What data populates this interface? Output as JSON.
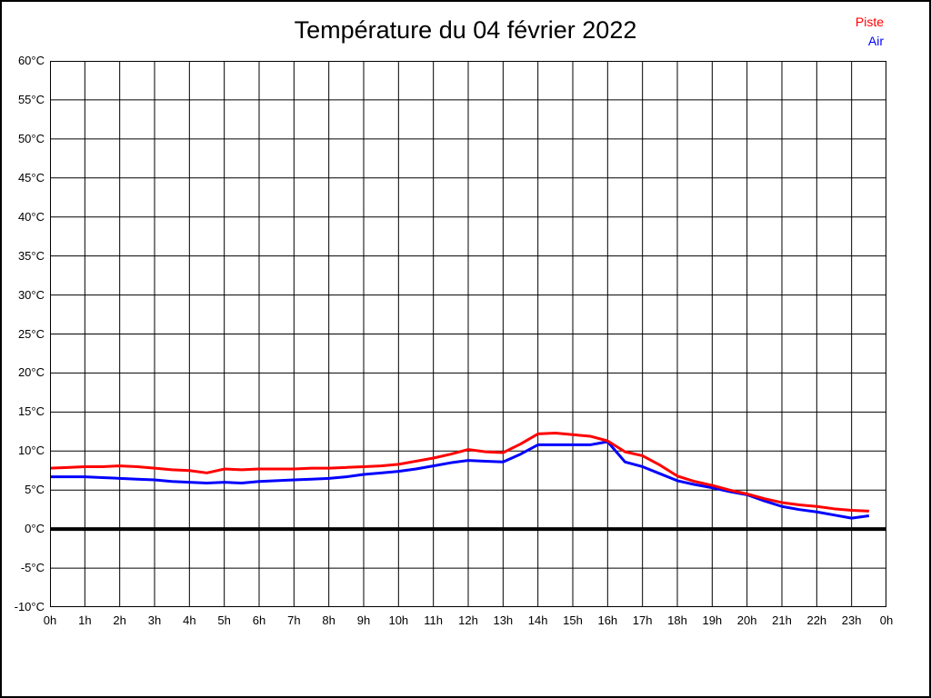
{
  "title": "Température du 04 février 2022",
  "legend": {
    "items": [
      {
        "label": "Piste",
        "color": "#ff0000"
      },
      {
        "label": "Air",
        "color": "#0000ff"
      }
    ]
  },
  "chart_data": {
    "type": "line",
    "title": "Température du 04 février 2022",
    "xlabel": "",
    "ylabel": "",
    "grid": true,
    "legend_position": "top-right",
    "background": "#ffffff",
    "grid_color": "#000000",
    "zero_line": {
      "value": 0,
      "color": "#000000",
      "width": 4
    },
    "x_axis": {
      "range": [
        0,
        24
      ],
      "tick_values": [
        0,
        1,
        2,
        3,
        4,
        5,
        6,
        7,
        8,
        9,
        10,
        11,
        12,
        13,
        14,
        15,
        16,
        17,
        18,
        19,
        20,
        21,
        22,
        23,
        24
      ],
      "tick_labels": [
        "0h",
        "1h",
        "2h",
        "3h",
        "4h",
        "5h",
        "6h",
        "7h",
        "8h",
        "9h",
        "10h",
        "11h",
        "12h",
        "13h",
        "14h",
        "15h",
        "16h",
        "17h",
        "18h",
        "19h",
        "20h",
        "21h",
        "22h",
        "23h",
        "0h"
      ]
    },
    "y_axis": {
      "range": [
        -10,
        60
      ],
      "unit": "°C",
      "tick_values": [
        60,
        55,
        50,
        45,
        40,
        35,
        30,
        25,
        20,
        15,
        10,
        5,
        0,
        -5,
        -10
      ],
      "tick_labels": [
        "60°C",
        "55°C",
        "50°C",
        "45°C",
        "40°C",
        "35°C",
        "30°C",
        "25°C",
        "20°C",
        "15°C",
        "10°C",
        "5°C",
        "0°C",
        "-5°C",
        "-10°C"
      ]
    },
    "x": [
      0,
      0.5,
      1,
      1.5,
      2,
      2.5,
      3,
      3.5,
      4,
      4.5,
      5,
      5.5,
      6,
      6.5,
      7,
      7.5,
      8,
      8.5,
      9,
      9.5,
      10,
      10.5,
      11,
      11.5,
      12,
      12.5,
      13,
      13.5,
      14,
      14.5,
      15,
      15.5,
      16,
      16.5,
      17,
      17.5,
      18,
      18.5,
      19,
      19.5,
      20,
      20.5,
      21,
      21.5,
      22,
      22.5,
      23,
      23.5
    ],
    "series": [
      {
        "name": "Piste",
        "color": "#ff0000",
        "width": 3,
        "values": [
          7.8,
          7.9,
          8.0,
          8.0,
          8.1,
          8.0,
          7.8,
          7.6,
          7.5,
          7.2,
          7.7,
          7.6,
          7.7,
          7.7,
          7.7,
          7.8,
          7.8,
          7.9,
          8.0,
          8.1,
          8.3,
          8.7,
          9.1,
          9.6,
          10.2,
          9.9,
          9.8,
          10.9,
          12.2,
          12.3,
          12.1,
          11.9,
          11.3,
          9.9,
          9.4,
          8.2,
          6.8,
          6.1,
          5.6,
          5.0,
          4.5,
          3.9,
          3.4,
          3.1,
          2.9,
          2.6,
          2.4,
          2.3
        ]
      },
      {
        "name": "Air",
        "color": "#0000ff",
        "width": 3,
        "values": [
          6.7,
          6.7,
          6.7,
          6.6,
          6.5,
          6.4,
          6.3,
          6.1,
          6.0,
          5.9,
          6.0,
          5.9,
          6.1,
          6.2,
          6.3,
          6.4,
          6.5,
          6.7,
          7.0,
          7.2,
          7.4,
          7.7,
          8.1,
          8.5,
          8.8,
          8.7,
          8.6,
          9.6,
          10.8,
          10.8,
          10.8,
          10.8,
          11.2,
          8.6,
          8.0,
          7.1,
          6.2,
          5.7,
          5.3,
          4.8,
          4.4,
          3.6,
          2.9,
          2.5,
          2.2,
          1.8,
          1.4,
          1.7
        ]
      }
    ]
  }
}
